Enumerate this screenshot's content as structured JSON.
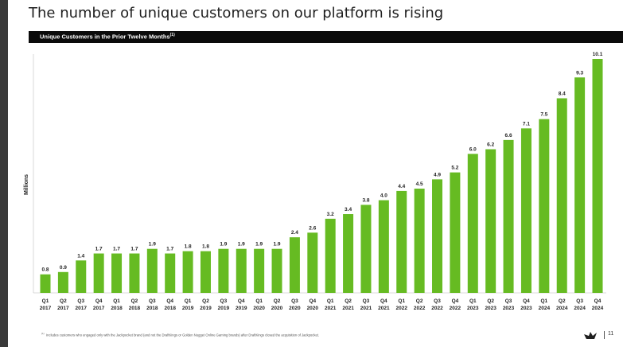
{
  "page": {
    "title": "The number of unique customers on our platform is rising",
    "subtitle": "Unique Customers in the Prior Twelve Months",
    "subtitle_note": "(1)",
    "footnote_mark": "(1)",
    "footnote": "Includes customers who engaged only with the Jackpocket brand (and not the DraftKings or Golden Nugget Online Gaming brands) after DraftKings closed the acquisition of Jackpocket.",
    "page_number": "11",
    "logo_icon": "crown-logo-icon"
  },
  "colors": {
    "bar": "#66bb22",
    "band": "#0b0b0b",
    "rail": "#3a3a3a",
    "text": "#1f1f1f"
  },
  "chart_data": {
    "type": "bar",
    "title": "Unique Customers in the Prior Twelve Months",
    "ylabel": "Millions",
    "xlabel": "",
    "ylim": [
      0,
      10.1
    ],
    "grid": false,
    "categories": [
      [
        "Q1",
        "2017"
      ],
      [
        "Q2",
        "2017"
      ],
      [
        "Q3",
        "2017"
      ],
      [
        "Q4",
        "2017"
      ],
      [
        "Q1",
        "2018"
      ],
      [
        "Q2",
        "2018"
      ],
      [
        "Q3",
        "2018"
      ],
      [
        "Q4",
        "2018"
      ],
      [
        "Q1",
        "2019"
      ],
      [
        "Q2",
        "2019"
      ],
      [
        "Q3",
        "2019"
      ],
      [
        "Q4",
        "2019"
      ],
      [
        "Q1",
        "2020"
      ],
      [
        "Q2",
        "2020"
      ],
      [
        "Q3",
        "2020"
      ],
      [
        "Q4",
        "2020"
      ],
      [
        "Q1",
        "2021"
      ],
      [
        "Q2",
        "2021"
      ],
      [
        "Q3",
        "2021"
      ],
      [
        "Q4",
        "2021"
      ],
      [
        "Q1",
        "2022"
      ],
      [
        "Q2",
        "2022"
      ],
      [
        "Q3",
        "2022"
      ],
      [
        "Q4",
        "2022"
      ],
      [
        "Q1",
        "2023"
      ],
      [
        "Q2",
        "2023"
      ],
      [
        "Q3",
        "2023"
      ],
      [
        "Q4",
        "2023"
      ],
      [
        "Q1",
        "2024"
      ],
      [
        "Q2",
        "2024"
      ],
      [
        "Q3",
        "2024"
      ],
      [
        "Q4",
        "2024"
      ]
    ],
    "values": [
      0.8,
      0.9,
      1.4,
      1.7,
      1.7,
      1.7,
      1.9,
      1.7,
      1.8,
      1.8,
      1.9,
      1.9,
      1.9,
      1.9,
      2.4,
      2.6,
      3.2,
      3.4,
      3.8,
      4.0,
      4.4,
      4.5,
      4.9,
      5.2,
      6.0,
      6.2,
      6.6,
      7.1,
      7.5,
      8.4,
      9.3,
      10.1
    ],
    "value_labels": [
      "0.8",
      "0.9",
      "1.4",
      "1.7",
      "1.7",
      "1.7",
      "1.9",
      "1.7",
      "1.8",
      "1.8",
      "1.9",
      "1.9",
      "1.9",
      "1.9",
      "2.4",
      "2.6",
      "3.2",
      "3.4",
      "3.8",
      "4.0",
      "4.4",
      "4.5",
      "4.9",
      "5.2",
      "6.0",
      "6.2",
      "6.6",
      "7.1",
      "7.5",
      "8.4",
      "9.3",
      "10.1"
    ]
  }
}
